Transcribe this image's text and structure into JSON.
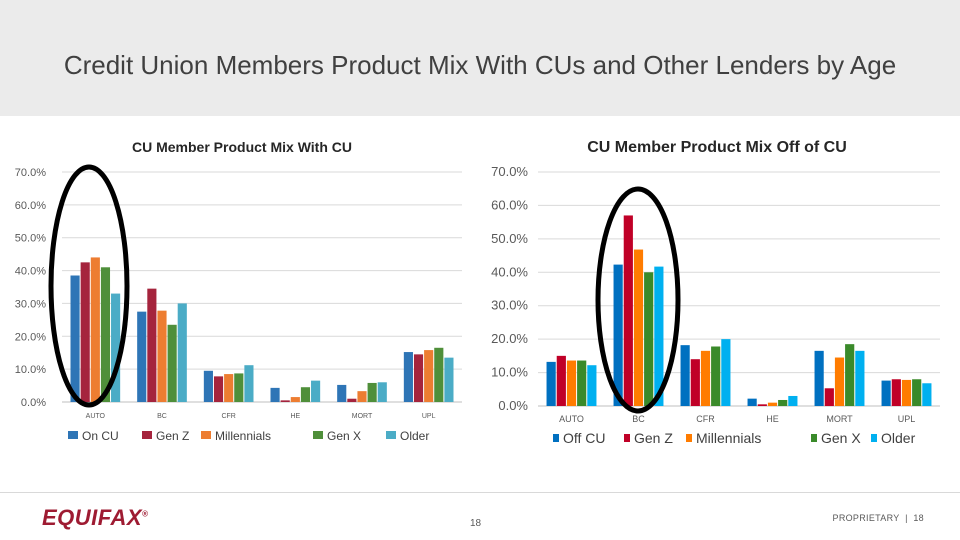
{
  "slide": {
    "title": "Credit Union Members Product Mix With CUs and Other Lenders by Age",
    "logo": "EQUIFAX",
    "logo_mark": "®",
    "page_number": "18",
    "footer_label": "PROPRIETARY",
    "footer_separator": "|",
    "footer_page": "18"
  },
  "chart_data": [
    {
      "type": "bar",
      "title": "CU Member Product Mix With CU",
      "categories": [
        "AUTO",
        "BC",
        "CFR",
        "HE",
        "MORT",
        "UPL"
      ],
      "ylim": [
        0,
        70
      ],
      "yticks": [
        "0.0%",
        "10.0%",
        "20.0%",
        "30.0%",
        "40.0%",
        "50.0%",
        "60.0%",
        "70.0%"
      ],
      "grid": true,
      "legend_position": "bottom",
      "series": [
        {
          "name": "On CU",
          "color": "#2e75b6",
          "values": [
            38.5,
            27.5,
            9.5,
            4.3,
            5.2,
            15.2
          ]
        },
        {
          "name": "Gen Z",
          "color": "#a5243d",
          "values": [
            42.5,
            34.5,
            7.8,
            0.5,
            1.0,
            14.5
          ]
        },
        {
          "name": "Millennials",
          "color": "#ed7d31",
          "values": [
            44.0,
            27.8,
            8.5,
            1.5,
            3.3,
            15.8
          ]
        },
        {
          "name": "Gen X",
          "color": "#4f8f3a",
          "values": [
            41.0,
            23.5,
            8.7,
            4.5,
            5.8,
            16.5
          ]
        },
        {
          "name": "Older",
          "color": "#4bacc6",
          "values": [
            33.0,
            30.0,
            11.2,
            6.5,
            6.0,
            13.5
          ]
        }
      ]
    },
    {
      "type": "bar",
      "title": "CU Member Product Mix Off of CU",
      "categories": [
        "AUTO",
        "BC",
        "CFR",
        "HE",
        "MORT",
        "UPL"
      ],
      "ylim": [
        0,
        70
      ],
      "yticks": [
        "0.0%",
        "10.0%",
        "20.0%",
        "30.0%",
        "40.0%",
        "50.0%",
        "60.0%",
        "70.0%"
      ],
      "grid": true,
      "legend_position": "bottom",
      "series": [
        {
          "name": "Off CU",
          "color": "#0070c0",
          "values": [
            13.2,
            42.3,
            18.2,
            2.2,
            16.5,
            7.6
          ]
        },
        {
          "name": "Gen Z",
          "color": "#c00027",
          "values": [
            15.0,
            57.0,
            14.0,
            0.5,
            5.3,
            8.0
          ]
        },
        {
          "name": "Millennials",
          "color": "#ff7c00",
          "values": [
            13.6,
            46.8,
            16.5,
            1.0,
            14.5,
            7.8
          ]
        },
        {
          "name": "Gen X",
          "color": "#3a8a2a",
          "values": [
            13.6,
            40.0,
            17.8,
            1.8,
            18.5,
            8.0
          ]
        },
        {
          "name": "Older",
          "color": "#00b0f0",
          "values": [
            12.2,
            41.7,
            20.0,
            3.0,
            16.5,
            6.8
          ]
        }
      ]
    }
  ]
}
